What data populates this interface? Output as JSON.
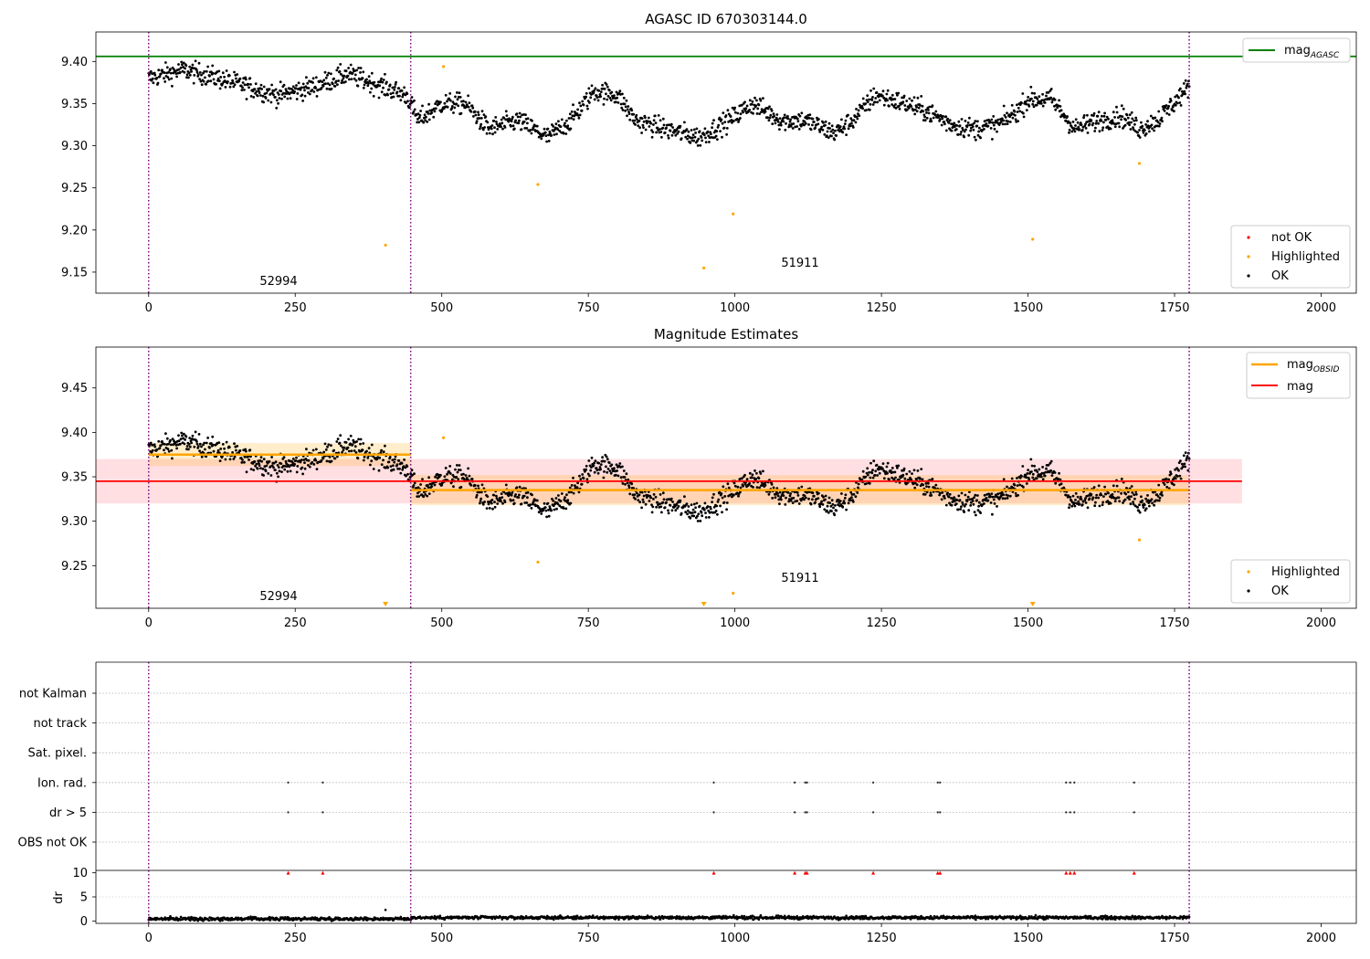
{
  "figure": {
    "panel1_title": "AGASC ID 670303144.0",
    "panel2_title": "Magnitude Estimates",
    "obsid_labels": [
      "52994",
      "51911"
    ],
    "obs_boundaries": [
      0,
      447,
      1775
    ]
  },
  "legend": {
    "mag_agasc": "mag",
    "mag_agasc_sub": "AGASC",
    "mag_obsid": "mag",
    "mag_obsid_sub": "OBSID",
    "mag": "mag",
    "not_ok": "not OK",
    "highlighted": "Highlighted",
    "ok": "OK"
  },
  "colors": {
    "ok": "#000000",
    "highlighted": "#ffa500",
    "not_ok": "#ff0000",
    "agasc_line": "#008000",
    "mag_line": "#ff0000",
    "mag_obsid_line": "#ffa500",
    "boundary": "#800080"
  },
  "chart_data": [
    {
      "type": "scatter",
      "title": "AGASC ID 670303144.0",
      "xlim": [
        -90,
        2060
      ],
      "ylim": [
        9.125,
        9.435
      ],
      "xticks": [
        0,
        250,
        500,
        750,
        1000,
        1250,
        1500,
        1750,
        2000
      ],
      "yticks": [
        9.15,
        9.2,
        9.25,
        9.3,
        9.35,
        9.4
      ],
      "ytick_labels": [
        "9.15",
        "9.20",
        "9.25",
        "9.30",
        "9.35",
        "9.40"
      ],
      "mag_agasc": 9.406,
      "obsids": [
        {
          "label": "52994",
          "x_start": 0,
          "x_end": 447
        },
        {
          "label": "51911",
          "x_start": 447,
          "x_end": 1775
        }
      ],
      "ok_trend": [
        [
          0,
          9.38
        ],
        [
          60,
          9.39
        ],
        [
          120,
          9.38
        ],
        [
          170,
          9.37
        ],
        [
          220,
          9.36
        ],
        [
          280,
          9.37
        ],
        [
          340,
          9.385
        ],
        [
          400,
          9.37
        ],
        [
          440,
          9.36
        ],
        [
          460,
          9.33
        ],
        [
          500,
          9.35
        ],
        [
          540,
          9.35
        ],
        [
          580,
          9.32
        ],
        [
          630,
          9.33
        ],
        [
          680,
          9.31
        ],
        [
          720,
          9.33
        ],
        [
          760,
          9.365
        ],
        [
          800,
          9.36
        ],
        [
          830,
          9.33
        ],
        [
          880,
          9.32
        ],
        [
          940,
          9.31
        ],
        [
          990,
          9.33
        ],
        [
          1030,
          9.35
        ],
        [
          1080,
          9.33
        ],
        [
          1120,
          9.33
        ],
        [
          1170,
          9.315
        ],
        [
          1200,
          9.33
        ],
        [
          1240,
          9.36
        ],
        [
          1290,
          9.35
        ],
        [
          1330,
          9.34
        ],
        [
          1370,
          9.325
        ],
        [
          1410,
          9.32
        ],
        [
          1450,
          9.325
        ],
        [
          1480,
          9.34
        ],
        [
          1500,
          9.355
        ],
        [
          1540,
          9.355
        ],
        [
          1580,
          9.32
        ],
        [
          1620,
          9.33
        ],
        [
          1660,
          9.335
        ],
        [
          1690,
          9.32
        ],
        [
          1720,
          9.33
        ],
        [
          1775,
          9.37
        ]
      ],
      "ok_spread": 0.012,
      "highlighted": [
        [
          404,
          9.182
        ],
        [
          503,
          9.394
        ],
        [
          664,
          9.254
        ],
        [
          947,
          9.155
        ],
        [
          997,
          9.219
        ],
        [
          1508,
          9.189
        ],
        [
          1690,
          9.279
        ]
      ],
      "legend": [
        "not OK",
        "Highlighted",
        "OK"
      ]
    },
    {
      "type": "scatter",
      "title": "Magnitude Estimates",
      "xlim": [
        -90,
        2060
      ],
      "ylim": [
        9.202,
        9.496
      ],
      "xticks": [
        0,
        250,
        500,
        750,
        1000,
        1250,
        1500,
        1750,
        2000
      ],
      "yticks": [
        9.25,
        9.3,
        9.35,
        9.4,
        9.45
      ],
      "ytick_labels": [
        "9.25",
        "9.30",
        "9.35",
        "9.40",
        "9.45"
      ],
      "mag": 9.345,
      "mag_band": [
        9.32,
        9.37
      ],
      "mag_band_x": [
        -90,
        1865
      ],
      "mag_obsid": [
        {
          "x_start": 0,
          "x_end": 447,
          "value": 9.375,
          "band": [
            9.362,
            9.388
          ]
        },
        {
          "x_start": 447,
          "x_end": 1775,
          "value": 9.335,
          "band": [
            9.318,
            9.352
          ]
        }
      ],
      "highlighted": [
        [
          503,
          9.394
        ],
        [
          664,
          9.254
        ],
        [
          997,
          9.219
        ],
        [
          1690,
          9.279
        ]
      ],
      "below_range": [
        404,
        947,
        1508
      ],
      "legend": [
        "Highlighted",
        "OK"
      ]
    },
    {
      "type": "scatter",
      "title": "",
      "xlim": [
        -90,
        2060
      ],
      "categories": [
        "not Kalman",
        "not track",
        "Sat. pixel.",
        "Ion. rad.",
        "dr > 5",
        "OBS not OK"
      ],
      "flag_x": [
        238,
        297,
        964,
        1102,
        1120,
        1123,
        1236,
        1346,
        1350,
        1565,
        1572,
        1579,
        1681
      ],
      "flagged_categories": [
        "Ion. rad.",
        "dr > 5"
      ]
    },
    {
      "type": "scatter",
      "title": "",
      "xlabel": "",
      "ylabel": "dr",
      "xlim": [
        -90,
        2060
      ],
      "ylim": [
        -0.5,
        10.5
      ],
      "xticks": [
        0,
        250,
        500,
        750,
        1000,
        1250,
        1500,
        1750,
        2000
      ],
      "yticks": [
        0,
        5,
        10
      ],
      "dr_level": 0.45,
      "dr_spread": 0.55,
      "dr_outlier": [
        404,
        2.3
      ],
      "dr_clip_x": [
        238,
        297,
        964,
        1102,
        1120,
        1123,
        1236,
        1346,
        1350,
        1565,
        1572,
        1579,
        1681
      ],
      "dr_clip_value": 10
    }
  ]
}
